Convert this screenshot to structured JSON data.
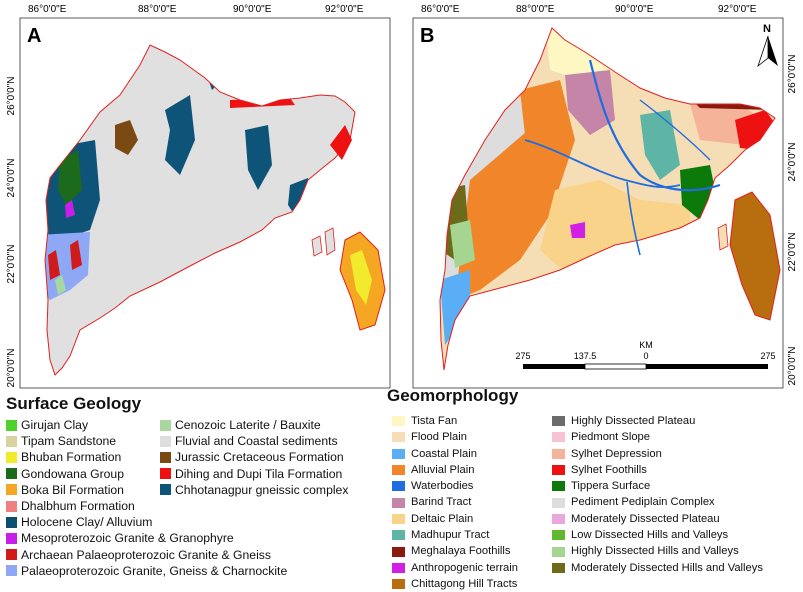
{
  "panel_a": {
    "label": "A",
    "top_ticks": [
      "86°0'0\"E",
      "88°0'0\"E",
      "90°0'0\"E",
      "92°0'0\"E"
    ],
    "left_ticks": [
      "26°0'0\"N",
      "24°0'0\"N",
      "22°0'0\"N",
      "20°0'0\"N"
    ]
  },
  "panel_b": {
    "label": "B",
    "top_ticks": [
      "86°0'0\"E",
      "88°0'0\"E",
      "90°0'0\"E",
      "92°0'0\"E"
    ],
    "right_ticks": [
      "26°0'0\"N",
      "24°0'0\"N",
      "22°0'0\"N",
      "20°0'0\"N"
    ],
    "north": "N",
    "scale_unit": "KM",
    "scale_labels": [
      "275",
      "137.5",
      "0",
      "275"
    ]
  },
  "legend_a": {
    "title": "Surface Geology",
    "col1": [
      {
        "label": "Girujan Clay",
        "color": "#4fd12b"
      },
      {
        "label": "Tipam Sandstone",
        "color": "#d8d3a0"
      },
      {
        "label": "Bhuban Formation",
        "color": "#f2ea2c"
      },
      {
        "label": "Gondowana Group",
        "color": "#1c6b1c"
      },
      {
        "label": "Boka Bil Formation",
        "color": "#f5a623"
      },
      {
        "label": "Dhalbhum Formation",
        "color": "#f08080"
      },
      {
        "label": "Holocene Clay/ Alluvium",
        "color": "#0b4f71"
      },
      {
        "label": "Mesoproterozoic Granite & Granophyre",
        "color": "#c81ee8"
      },
      {
        "label": "Archaean Palaeoproterozoic Granite & Gneiss",
        "color": "#d11a1a"
      },
      {
        "label": "Palaeoproterozoic Granite, Gneiss & Charnockite",
        "color": "#8fa8f5"
      }
    ],
    "col2": [
      {
        "label": "Cenozoic Laterite / Bauxite",
        "color": "#a8d8a0"
      },
      {
        "label": "Fluvial and Coastal sediments",
        "color": "#dedede"
      },
      {
        "label": "Jurassic Cretaceous Formation",
        "color": "#7a4a12"
      },
      {
        "label": "Dihing and Dupi Tila Formation",
        "color": "#ee1111"
      },
      {
        "label": "Chhotanagpur gneissic complex",
        "color": "#0e5478"
      }
    ]
  },
  "legend_b": {
    "title": "Geomorphology",
    "col1": [
      {
        "label": "Tista Fan",
        "color": "#fdf7c4"
      },
      {
        "label": "Flood Plain",
        "color": "#f5ddb5"
      },
      {
        "label": "Coastal Plain",
        "color": "#5aaef5"
      },
      {
        "label": "Alluvial Plain",
        "color": "#f0852a"
      },
      {
        "label": "Waterbodies",
        "color": "#1f6de0"
      },
      {
        "label": "Barind Tract",
        "color": "#c585a8"
      },
      {
        "label": "Deltaic Plain",
        "color": "#fad38a"
      },
      {
        "label": "Madhupur Tract",
        "color": "#5fb5a5"
      },
      {
        "label": "Meghalaya Foothills",
        "color": "#8a1a0e"
      },
      {
        "label": "Anthropogenic terrain",
        "color": "#d21fe6"
      },
      {
        "label": "Chittagong Hill Tracts",
        "color": "#b86d0f"
      }
    ],
    "col2": [
      {
        "label": "Highly Dissected Plateau",
        "color": "#6b6b6b"
      },
      {
        "label": "Piedmont Slope",
        "color": "#f7c2d4"
      },
      {
        "label": "Sylhet Depression",
        "color": "#f5b39a"
      },
      {
        "label": "Sylhet Foothills",
        "color": "#ee1111"
      },
      {
        "label": "Tippera Surface",
        "color": "#0b7a0b"
      },
      {
        "label": "Pediment Pediplain Complex",
        "color": "#dddddd"
      },
      {
        "label": "Moderately Dissected Plateau",
        "color": "#e8a8dc"
      },
      {
        "label": "Low Dissected Hills and Valleys",
        "color": "#5fb830"
      },
      {
        "label": "Highly Dissected Hills and Valleys",
        "color": "#a5d590"
      },
      {
        "label": "Moderately Dissected Hills and Valleys",
        "color": "#6b6b1a"
      }
    ]
  }
}
